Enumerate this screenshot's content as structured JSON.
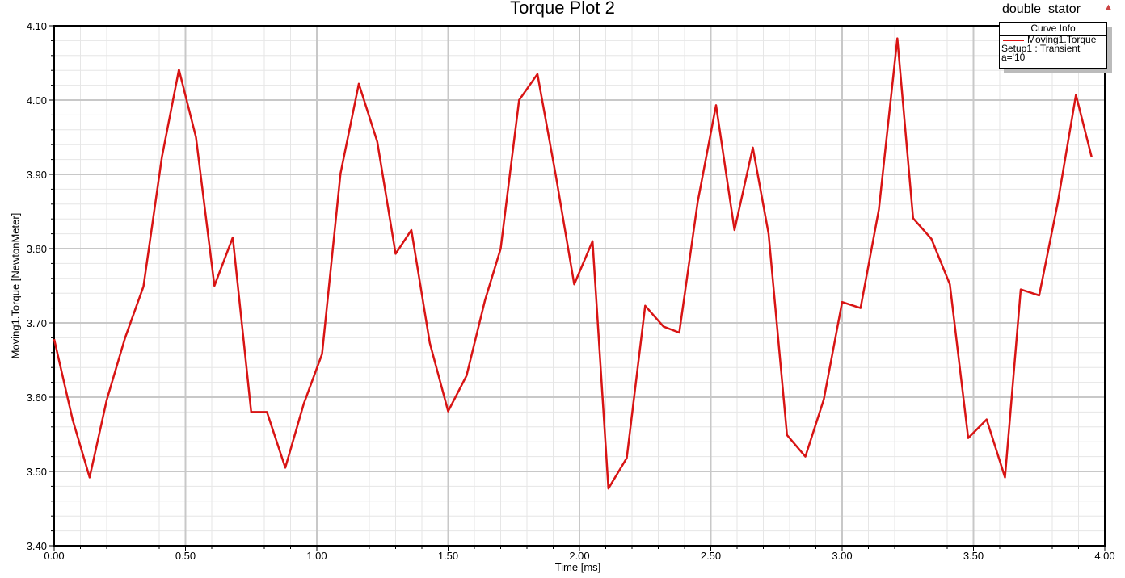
{
  "header": {
    "project": "double_stator_"
  },
  "legend": {
    "title": "Curve Info",
    "entry": "Moving1.Torque",
    "setup": "Setup1 : Transient",
    "param": "a='10'"
  },
  "colors": {
    "series": "#d81414",
    "major_grid": "#c8c8c8",
    "minor_grid": "#e6e6e6",
    "warning_icon": "#c44444"
  },
  "chart_data": {
    "type": "line",
    "title": "Torque Plot 2",
    "xlabel": "Time [ms]",
    "ylabel": "Moving1.Torque [NewtonMeter]",
    "xlim": [
      0,
      4
    ],
    "ylim": [
      3.4,
      4.1
    ],
    "xticks": [
      "0.00",
      "0.50",
      "1.00",
      "1.50",
      "2.00",
      "2.50",
      "3.00",
      "3.50",
      "4.00"
    ],
    "yticks": [
      "3.40",
      "3.50",
      "3.60",
      "3.70",
      "3.80",
      "3.90",
      "4.00",
      "4.10"
    ],
    "grid": true,
    "legend_placement": "top-right",
    "series": [
      {
        "name": "Moving1.Torque",
        "x": [
          0,
          0.07,
          0.135,
          0.2,
          0.27,
          0.34,
          0.41,
          0.475,
          0.54,
          0.61,
          0.68,
          0.75,
          0.81,
          0.88,
          0.95,
          1.02,
          1.09,
          1.16,
          1.23,
          1.3,
          1.36,
          1.43,
          1.5,
          1.57,
          1.64,
          1.7,
          1.77,
          1.84,
          1.91,
          1.98,
          2.05,
          2.11,
          2.18,
          2.25,
          2.32,
          2.38,
          2.45,
          2.52,
          2.59,
          2.66,
          2.72,
          2.79,
          2.86,
          2.93,
          3.0,
          3.07,
          3.14,
          3.21,
          3.27,
          3.34,
          3.41,
          3.48,
          3.55,
          3.62,
          3.68,
          3.75,
          3.82,
          3.89,
          3.95
        ],
        "y": [
          3.678,
          3.57,
          3.492,
          3.596,
          3.68,
          3.749,
          3.923,
          4.041,
          3.95,
          3.75,
          3.815,
          3.58,
          3.58,
          3.505,
          3.591,
          3.658,
          3.901,
          4.022,
          3.944,
          3.793,
          3.825,
          3.673,
          3.581,
          3.629,
          3.73,
          3.8,
          4.0,
          4.035,
          3.898,
          3.752,
          3.81,
          3.477,
          3.518,
          3.723,
          3.695,
          3.687,
          3.863,
          3.993,
          3.825,
          3.936,
          3.82,
          3.549,
          3.52,
          3.597,
          3.728,
          3.72,
          3.853,
          4.083,
          3.841,
          3.813,
          3.752,
          3.545,
          3.57,
          3.492,
          3.745,
          3.737,
          3.86,
          4.007,
          3.923
        ]
      }
    ]
  }
}
